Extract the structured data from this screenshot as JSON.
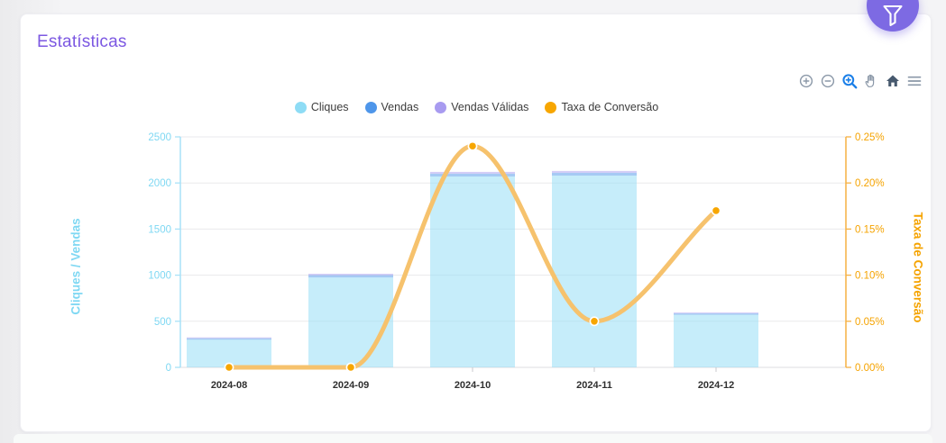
{
  "card": {
    "title": "Estatísticas",
    "title_color": "#7c58e2"
  },
  "filter_button": {
    "icon": "funnel-icon",
    "color": "#7d6ae3"
  },
  "toolbar": {
    "icons": [
      "zoom-in",
      "zoom-out",
      "box-zoom",
      "pan",
      "reset-home",
      "menu"
    ],
    "active_icon": "box-zoom",
    "icon_color": "#8b98a8",
    "active_color": "#1b7fe8",
    "home_color": "#47596e"
  },
  "chart_data": {
    "type": "bar+line",
    "categories": [
      "2024-08",
      "2024-09",
      "2024-10",
      "2024-11",
      "2024-12"
    ],
    "series": [
      {
        "name": "Cliques",
        "type": "bar",
        "axis": "left",
        "color": "#8edcf5",
        "values": [
          300,
          975,
          2070,
          2080,
          570
        ]
      },
      {
        "name": "Vendas",
        "type": "bar",
        "axis": "left",
        "color": "#4e96ea",
        "values": [
          15,
          25,
          30,
          30,
          15
        ]
      },
      {
        "name": "Vendas Válidas",
        "type": "bar",
        "axis": "left",
        "color": "#a89bf0",
        "values": [
          10,
          15,
          20,
          20,
          10
        ]
      },
      {
        "name": "Taxa de Conversão",
        "type": "line",
        "axis": "right",
        "color": "#f7a600",
        "line_color": "#f6c26d",
        "values": [
          0.0,
          0.0,
          0.24,
          0.05,
          0.17
        ]
      }
    ],
    "y_left": {
      "label": "Cliques / Vendas",
      "color": "#7fd8f3",
      "axis_line_color": "#a8e2f8",
      "min": 0,
      "max": 2500,
      "ticks": [
        0,
        500,
        1000,
        1500,
        2000,
        2500
      ]
    },
    "y_right": {
      "label": "Taxa de Conversão",
      "color": "#f5a300",
      "axis_line_color": "#f6b143",
      "min": 0,
      "max": 0.25,
      "tick_labels": [
        "0.00%",
        "0.05%",
        "0.10%",
        "0.15%",
        "0.20%",
        "0.25%"
      ]
    },
    "x_label_color": "#2f2f2f",
    "grid": true,
    "grid_color": "#eaeaec",
    "legend_position": "top",
    "bars_stacked": true
  }
}
